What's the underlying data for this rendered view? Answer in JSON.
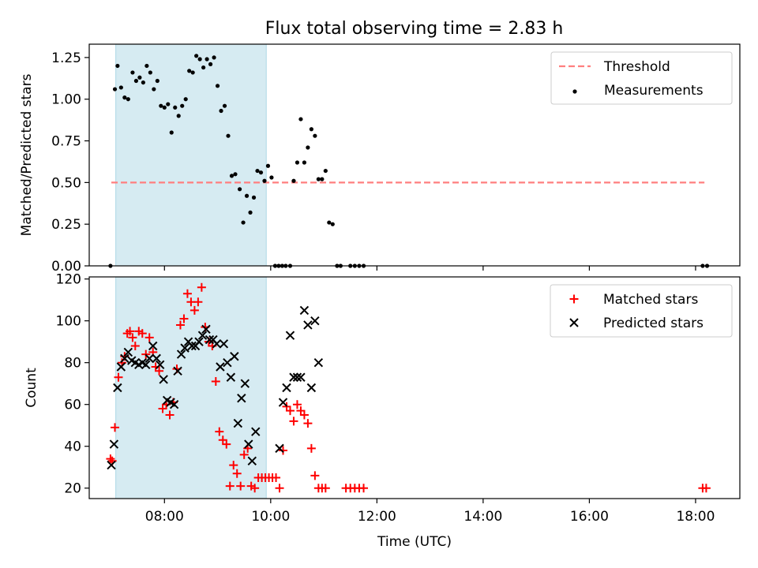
{
  "title": "Flux total observing time = 2.83 h",
  "colors": {
    "shade": "#add8e6",
    "threshold": "#ff7f7f",
    "matched": "#ff0000",
    "predicted": "#000000",
    "measurement": "#000000"
  },
  "chart_data": [
    {
      "type": "scatter",
      "ylabel": "Matched/Predicted stars",
      "ylim": [
        0,
        1.33
      ],
      "xlim": [
        "06:35",
        "18:50"
      ],
      "yticks": [
        "0.00",
        "0.25",
        "0.50",
        "0.75",
        "1.00",
        "1.25"
      ],
      "shaded_span": [
        "07:05",
        "09:55"
      ],
      "legend": [
        {
          "label": "Threshold",
          "kind": "line"
        },
        {
          "label": "Measurements",
          "kind": "dot"
        }
      ],
      "threshold": {
        "y": 0.5,
        "x": [
          "07:00",
          "18:10"
        ]
      },
      "series": [
        {
          "name": "Measurements",
          "points": [
            [
              "06:59",
              0.0
            ],
            [
              "07:04",
              1.06
            ],
            [
              "07:07",
              1.2
            ],
            [
              "07:11",
              1.07
            ],
            [
              "07:15",
              1.01
            ],
            [
              "07:19",
              1.0
            ],
            [
              "07:24",
              1.16
            ],
            [
              "07:28",
              1.11
            ],
            [
              "07:32",
              1.13
            ],
            [
              "07:36",
              1.1
            ],
            [
              "07:40",
              1.2
            ],
            [
              "07:44",
              1.16
            ],
            [
              "07:48",
              1.06
            ],
            [
              "07:52",
              1.11
            ],
            [
              "07:56",
              0.96
            ],
            [
              "08:00",
              0.95
            ],
            [
              "08:04",
              0.97
            ],
            [
              "08:08",
              0.8
            ],
            [
              "08:12",
              0.95
            ],
            [
              "08:16",
              0.9
            ],
            [
              "08:20",
              0.96
            ],
            [
              "08:24",
              1.0
            ],
            [
              "08:28",
              1.17
            ],
            [
              "08:32",
              1.16
            ],
            [
              "08:36",
              1.26
            ],
            [
              "08:40",
              1.24
            ],
            [
              "08:44",
              1.19
            ],
            [
              "08:48",
              1.24
            ],
            [
              "08:52",
              1.21
            ],
            [
              "08:56",
              1.25
            ],
            [
              "09:00",
              1.08
            ],
            [
              "09:04",
              0.93
            ],
            [
              "09:08",
              0.96
            ],
            [
              "09:12",
              0.78
            ],
            [
              "09:16",
              0.54
            ],
            [
              "09:20",
              0.55
            ],
            [
              "09:25",
              0.46
            ],
            [
              "09:29",
              0.26
            ],
            [
              "09:33",
              0.42
            ],
            [
              "09:37",
              0.32
            ],
            [
              "09:41",
              0.41
            ],
            [
              "09:45",
              0.57
            ],
            [
              "09:49",
              0.56
            ],
            [
              "09:53",
              0.51
            ],
            [
              "09:57",
              0.6
            ],
            [
              "10:01",
              0.53
            ],
            [
              "10:05",
              0.0
            ],
            [
              "10:09",
              0.0
            ],
            [
              "10:13",
              0.0
            ],
            [
              "10:17",
              0.0
            ],
            [
              "10:22",
              0.0
            ],
            [
              "10:26",
              0.51
            ],
            [
              "10:30",
              0.62
            ],
            [
              "10:34",
              0.88
            ],
            [
              "10:38",
              0.62
            ],
            [
              "10:42",
              0.71
            ],
            [
              "10:46",
              0.82
            ],
            [
              "10:50",
              0.78
            ],
            [
              "10:54",
              0.52
            ],
            [
              "10:58",
              0.52
            ],
            [
              "11:02",
              0.57
            ],
            [
              "11:06",
              0.26
            ],
            [
              "11:10",
              0.25
            ],
            [
              "11:15",
              0.0
            ],
            [
              "11:19",
              0.0
            ],
            [
              "11:30",
              0.0
            ],
            [
              "11:35",
              0.0
            ],
            [
              "11:40",
              0.0
            ],
            [
              "11:45",
              0.0
            ],
            [
              "18:08",
              0.0
            ],
            [
              "18:13",
              0.0
            ]
          ]
        }
      ]
    },
    {
      "type": "scatter",
      "ylabel": "Count",
      "xlabel": "Time (UTC)",
      "ylim": [
        15,
        121
      ],
      "xlim": [
        "06:35",
        "18:50"
      ],
      "yticks": [
        "20",
        "40",
        "60",
        "80",
        "100",
        "120"
      ],
      "xticks": [
        "08:00",
        "10:00",
        "12:00",
        "14:00",
        "16:00",
        "18:00"
      ],
      "shaded_span": [
        "07:05",
        "09:55"
      ],
      "legend": [
        {
          "label": "Matched stars",
          "kind": "plus"
        },
        {
          "label": "Predicted stars",
          "kind": "x"
        }
      ],
      "series": [
        {
          "name": "Matched stars",
          "points": [
            [
              "06:59",
              34
            ],
            [
              "07:01",
              33
            ],
            [
              "07:04",
              49
            ],
            [
              "07:08",
              73
            ],
            [
              "07:12",
              80
            ],
            [
              "07:15",
              83
            ],
            [
              "07:18",
              94
            ],
            [
              "07:21",
              95
            ],
            [
              "07:24",
              92
            ],
            [
              "07:27",
              88
            ],
            [
              "07:31",
              95
            ],
            [
              "07:35",
              94
            ],
            [
              "07:39",
              84
            ],
            [
              "07:43",
              92
            ],
            [
              "07:47",
              85
            ],
            [
              "07:50",
              78
            ],
            [
              "07:54",
              76
            ],
            [
              "07:58",
              58
            ],
            [
              "08:02",
              60
            ],
            [
              "08:06",
              55
            ],
            [
              "08:10",
              61
            ],
            [
              "08:14",
              77
            ],
            [
              "08:18",
              98
            ],
            [
              "08:22",
              101
            ],
            [
              "08:26",
              113
            ],
            [
              "08:30",
              109
            ],
            [
              "08:34",
              105
            ],
            [
              "08:38",
              109
            ],
            [
              "08:42",
              116
            ],
            [
              "08:46",
              97
            ],
            [
              "08:50",
              90
            ],
            [
              "08:54",
              88
            ],
            [
              "08:58",
              71
            ],
            [
              "09:02",
              47
            ],
            [
              "09:06",
              43
            ],
            [
              "09:10",
              41
            ],
            [
              "09:14",
              21
            ],
            [
              "09:18",
              31
            ],
            [
              "09:22",
              27
            ],
            [
              "09:26",
              21
            ],
            [
              "09:30",
              36
            ],
            [
              "09:34",
              39
            ],
            [
              "09:38",
              21
            ],
            [
              "09:42",
              20
            ],
            [
              "09:46",
              25
            ],
            [
              "09:50",
              25
            ],
            [
              "09:54",
              25
            ],
            [
              "09:58",
              25
            ],
            [
              "10:02",
              25
            ],
            [
              "10:06",
              25
            ],
            [
              "10:10",
              20
            ],
            [
              "10:14",
              38
            ],
            [
              "10:18",
              59
            ],
            [
              "10:22",
              57
            ],
            [
              "10:26",
              52
            ],
            [
              "10:30",
              60
            ],
            [
              "10:34",
              57
            ],
            [
              "10:38",
              55
            ],
            [
              "10:42",
              51
            ],
            [
              "10:46",
              39
            ],
            [
              "10:50",
              26
            ],
            [
              "10:54",
              20
            ],
            [
              "10:58",
              20
            ],
            [
              "11:02",
              20
            ],
            [
              "11:25",
              20
            ],
            [
              "11:30",
              20
            ],
            [
              "11:35",
              20
            ],
            [
              "11:40",
              20
            ],
            [
              "11:45",
              20
            ],
            [
              "18:08",
              20
            ],
            [
              "18:12",
              20
            ]
          ]
        },
        {
          "name": "Predicted stars",
          "points": [
            [
              "07:00",
              31
            ],
            [
              "07:03",
              41
            ],
            [
              "07:07",
              68
            ],
            [
              "07:11",
              78
            ],
            [
              "07:15",
              82
            ],
            [
              "07:19",
              85
            ],
            [
              "07:23",
              81
            ],
            [
              "07:27",
              80
            ],
            [
              "07:31",
              79
            ],
            [
              "07:35",
              80
            ],
            [
              "07:39",
              79
            ],
            [
              "07:43",
              82
            ],
            [
              "07:47",
              88
            ],
            [
              "07:51",
              82
            ],
            [
              "07:55",
              79
            ],
            [
              "07:59",
              72
            ],
            [
              "08:03",
              62
            ],
            [
              "08:07",
              61
            ],
            [
              "08:11",
              60
            ],
            [
              "08:15",
              76
            ],
            [
              "08:19",
              84
            ],
            [
              "08:23",
              87
            ],
            [
              "08:27",
              90
            ],
            [
              "08:31",
              88
            ],
            [
              "08:35",
              88
            ],
            [
              "08:39",
              90
            ],
            [
              "08:43",
              93
            ],
            [
              "08:47",
              96
            ],
            [
              "08:51",
              91
            ],
            [
              "08:55",
              91
            ],
            [
              "08:59",
              89
            ],
            [
              "09:03",
              78
            ],
            [
              "09:07",
              89
            ],
            [
              "09:11",
              80
            ],
            [
              "09:15",
              73
            ],
            [
              "09:19",
              83
            ],
            [
              "09:23",
              51
            ],
            [
              "09:27",
              63
            ],
            [
              "09:31",
              70
            ],
            [
              "09:35",
              41
            ],
            [
              "09:39",
              33
            ],
            [
              "09:43",
              47
            ],
            [
              "10:10",
              39
            ],
            [
              "10:14",
              61
            ],
            [
              "10:18",
              68
            ],
            [
              "10:22",
              93
            ],
            [
              "10:26",
              73
            ],
            [
              "10:30",
              73
            ],
            [
              "10:34",
              73
            ],
            [
              "10:38",
              105
            ],
            [
              "10:42",
              98
            ],
            [
              "10:46",
              68
            ],
            [
              "10:50",
              100
            ],
            [
              "10:54",
              80
            ]
          ]
        }
      ]
    }
  ]
}
